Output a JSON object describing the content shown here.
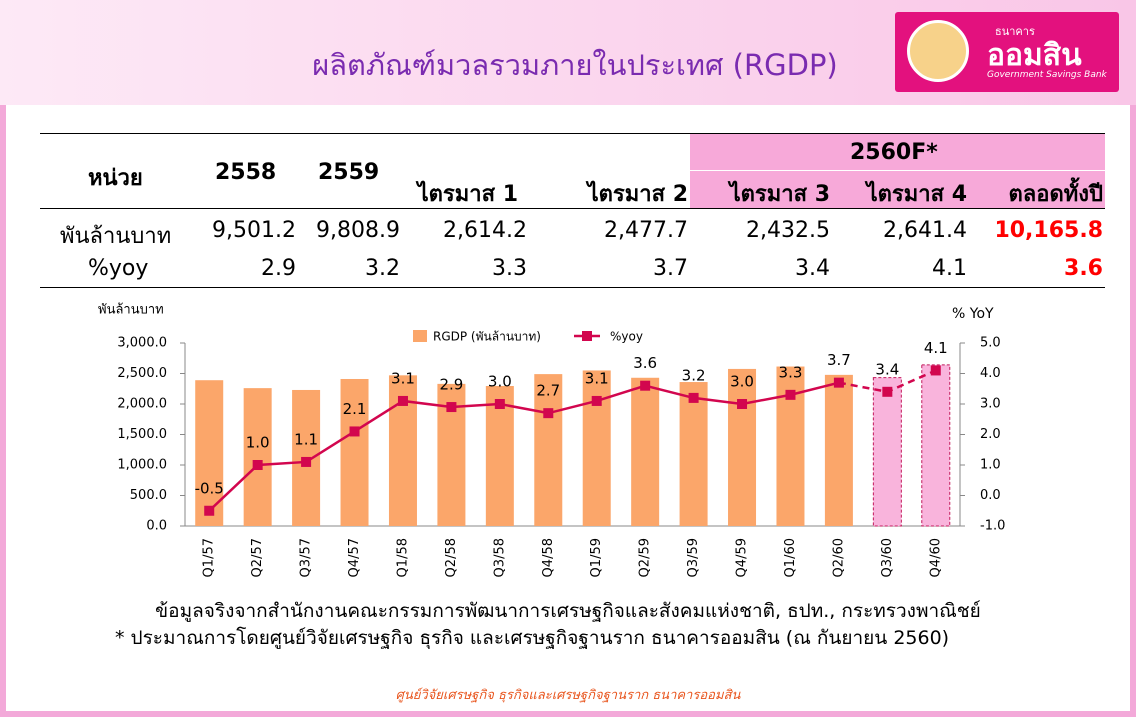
{
  "header": {
    "title": "ผลิตภัณฑ์มวลรวมภายในประเทศ (RGDP)",
    "logo_small": "ธนาคาร",
    "logo_name": "ออมสิน",
    "logo_english": "Government Savings Bank"
  },
  "table": {
    "header": [
      "หน่วย",
      "2558",
      "2559"
    ],
    "group": "2560F*",
    "subheader": [
      "ไตรมาส 1",
      "ไตรมาส 2",
      "ไตรมาส 3",
      "ไตรมาส 4",
      "ตลอดทั้งปี"
    ],
    "rows": [
      [
        "พันล้านบาท",
        "9,501.2",
        "9,808.9",
        "2,614.2",
        "2,477.7",
        "2,432.5",
        "2,641.4",
        "10,165.8"
      ],
      [
        "%yoy",
        "2.9",
        "3.2",
        "3.3",
        "3.7",
        "3.4",
        "4.1",
        "3.6"
      ]
    ]
  },
  "chart_data": {
    "type": "combo",
    "y_label": "พันล้านบาท",
    "y2_label": "% YoY",
    "categories": [
      "Q1/57",
      "Q2/57",
      "Q3/57",
      "Q4/57",
      "Q1/58",
      "Q2/58",
      "Q3/58",
      "Q4/58",
      "Q1/59",
      "Q2/59",
      "Q3/59",
      "Q4/59",
      "Q1/60",
      "Q2/60",
      "Q3/60",
      "Q4/60"
    ],
    "series": [
      {
        "name": "RGDP (พันล้านบาท)",
        "type": "bar",
        "color": "#fba66a",
        "colors": [
          "#fba66a",
          "#fba66a",
          "#fba66a",
          "#fba66a",
          "#fba66a",
          "#fba66a",
          "#fba66a",
          "#fba66a",
          "#fba66a",
          "#fba66a",
          "#fba66a",
          "#fba66a",
          "#fba66a",
          "#fba66a",
          "#f9b4dc",
          "#f9b4dc"
        ],
        "values": [
          2390,
          2260,
          2230,
          2410,
          2470,
          2330,
          2295,
          2490,
          2550,
          2430,
          2360,
          2575,
          2614.2,
          2477.7,
          2432.5,
          2641.4
        ]
      },
      {
        "name": "%yoy",
        "type": "line",
        "axis": "y2",
        "color": "#d2064e",
        "values": [
          -0.5,
          1,
          1.1,
          2.1,
          3.1,
          2.9,
          3,
          2.7,
          3.1,
          3.6,
          3.2,
          3,
          3.3,
          3.7,
          3.4,
          4.1
        ],
        "value_labels": [
          "-0.5",
          "1.0",
          "1.1",
          "2.1",
          "3.1",
          "2.9",
          "3.0",
          "2.7",
          "3.1",
          "3.6",
          "3.2",
          "3.0",
          "3.3",
          "3.7",
          "3.4",
          "4.1"
        ]
      }
    ],
    "ylim": [
      0,
      3000
    ],
    "yticks": [
      {
        "value": 0,
        "label": "0.0"
      },
      {
        "value": 500,
        "label": "500.0"
      },
      {
        "value": 1000,
        "label": "1,000.0"
      },
      {
        "value": 1500,
        "label": "1,500.0"
      },
      {
        "value": 2000,
        "label": "2,000.0"
      },
      {
        "value": 2500,
        "label": "2,500.0"
      },
      {
        "value": 3000,
        "label": "3,000.0"
      }
    ],
    "y2lim": [
      -1,
      5
    ],
    "y2ticks": [
      {
        "value": -1,
        "label": "-1.0"
      },
      {
        "value": 0,
        "label": "0.0"
      },
      {
        "value": 1,
        "label": "1.0"
      },
      {
        "value": 2,
        "label": "2.0"
      },
      {
        "value": 3,
        "label": "3.0"
      },
      {
        "value": 4,
        "label": "4.0"
      },
      {
        "value": 5,
        "label": "5.0"
      }
    ]
  },
  "notes": [
    "ข้อมูลจริงจากสำนักงานคณะกรรมการพัฒนาการเศรษฐกิจและสังคมแห่งชาติ, ธปท., กระทรวงพาณิชย์",
    "* ประมาณการโดยศูนย์วิจัยเศรษฐกิจ ธุรกิจ และเศรษฐกิจฐานราก ธนาคารออมสิน (ณ กันยายน 2560)"
  ],
  "footer": "ศูนย์วิจัยเศรษฐกิจ ธุรกิจและเศรษฐกิจฐานราก ธนาคารออมสิน"
}
